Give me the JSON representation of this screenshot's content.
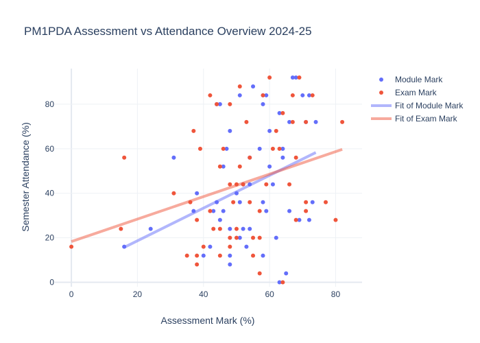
{
  "chart_data": {
    "type": "scatter",
    "title": "PM1PDA Assessment vs Attendance Overview 2024-25",
    "xlabel": "Assessment Mark (%)",
    "ylabel": "Semester Attendance (%)",
    "xlim": [
      -5,
      88
    ],
    "ylim": [
      -2,
      96
    ],
    "xticks": [
      0,
      20,
      40,
      60,
      80
    ],
    "yticks": [
      0,
      20,
      40,
      60,
      80
    ],
    "grid": true,
    "legend_position": "top-right",
    "series": [
      {
        "name": "Module Mark",
        "kind": "markers",
        "color": "#636efa",
        "points": [
          [
            16,
            16
          ],
          [
            24,
            24
          ],
          [
            31,
            56
          ],
          [
            37,
            32
          ],
          [
            38,
            40
          ],
          [
            40,
            12
          ],
          [
            42,
            16
          ],
          [
            43,
            32
          ],
          [
            44,
            36
          ],
          [
            45,
            28
          ],
          [
            44,
            80
          ],
          [
            45,
            80
          ],
          [
            46,
            32
          ],
          [
            46,
            52
          ],
          [
            47,
            60
          ],
          [
            48,
            68
          ],
          [
            48,
            24
          ],
          [
            48,
            12
          ],
          [
            48,
            8
          ],
          [
            50,
            40
          ],
          [
            51,
            84
          ],
          [
            51,
            36
          ],
          [
            51,
            20
          ],
          [
            52,
            24
          ],
          [
            52,
            44
          ],
          [
            53,
            16
          ],
          [
            54,
            24
          ],
          [
            54,
            44
          ],
          [
            54,
            56
          ],
          [
            55,
            88
          ],
          [
            57,
            60
          ],
          [
            58,
            84
          ],
          [
            58,
            80
          ],
          [
            58,
            36
          ],
          [
            58,
            12
          ],
          [
            59,
            32
          ],
          [
            59,
            84
          ],
          [
            60,
            68
          ],
          [
            60,
            52
          ],
          [
            61,
            44
          ],
          [
            62,
            20
          ],
          [
            63,
            0
          ],
          [
            63,
            76
          ],
          [
            64,
            60
          ],
          [
            64,
            56
          ],
          [
            65,
            4
          ],
          [
            66,
            32
          ],
          [
            66,
            72
          ],
          [
            67,
            92
          ],
          [
            68,
            92
          ],
          [
            69,
            28
          ],
          [
            70,
            84
          ],
          [
            71,
            72
          ],
          [
            72,
            28
          ],
          [
            72,
            84
          ],
          [
            73,
            36
          ],
          [
            74,
            72
          ]
        ]
      },
      {
        "name": "Exam Mark",
        "kind": "markers",
        "color": "#ef553b",
        "points": [
          [
            0,
            16
          ],
          [
            15,
            24
          ],
          [
            16,
            56
          ],
          [
            31,
            40
          ],
          [
            35,
            12
          ],
          [
            36,
            36
          ],
          [
            37,
            68
          ],
          [
            38,
            28
          ],
          [
            38,
            12
          ],
          [
            38,
            8
          ],
          [
            39,
            60
          ],
          [
            40,
            16
          ],
          [
            42,
            32
          ],
          [
            42,
            84
          ],
          [
            43,
            24
          ],
          [
            44,
            80
          ],
          [
            45,
            52
          ],
          [
            45,
            24
          ],
          [
            45,
            12
          ],
          [
            46,
            60
          ],
          [
            48,
            80
          ],
          [
            48,
            44
          ],
          [
            48,
            20
          ],
          [
            48,
            16
          ],
          [
            49,
            36
          ],
          [
            50,
            24
          ],
          [
            50,
            20
          ],
          [
            50,
            44
          ],
          [
            51,
            88
          ],
          [
            51,
            52
          ],
          [
            52,
            44
          ],
          [
            53,
            72
          ],
          [
            54,
            56
          ],
          [
            54,
            36
          ],
          [
            55,
            12
          ],
          [
            55,
            20
          ],
          [
            57,
            32
          ],
          [
            57,
            20
          ],
          [
            57,
            4
          ],
          [
            58,
            84
          ],
          [
            59,
            44
          ],
          [
            60,
            92
          ],
          [
            61,
            60
          ],
          [
            62,
            68
          ],
          [
            63,
            60
          ],
          [
            64,
            76
          ],
          [
            64,
            0
          ],
          [
            66,
            44
          ],
          [
            67,
            72
          ],
          [
            67,
            84
          ],
          [
            68,
            28
          ],
          [
            68,
            56
          ],
          [
            69,
            92
          ],
          [
            71,
            72
          ],
          [
            71,
            36
          ],
          [
            71,
            32
          ],
          [
            73,
            84
          ],
          [
            77,
            36
          ],
          [
            80,
            28
          ],
          [
            82,
            72
          ]
        ]
      },
      {
        "name": "Fit of Module Mark",
        "kind": "line",
        "color": "#636efa",
        "points": [
          [
            16,
            15.7
          ],
          [
            74,
            58.3
          ]
        ]
      },
      {
        "name": "Fit of Exam Mark",
        "kind": "line",
        "color": "#ef553b",
        "points": [
          [
            0,
            18.3
          ],
          [
            82,
            59.7
          ]
        ]
      }
    ]
  }
}
